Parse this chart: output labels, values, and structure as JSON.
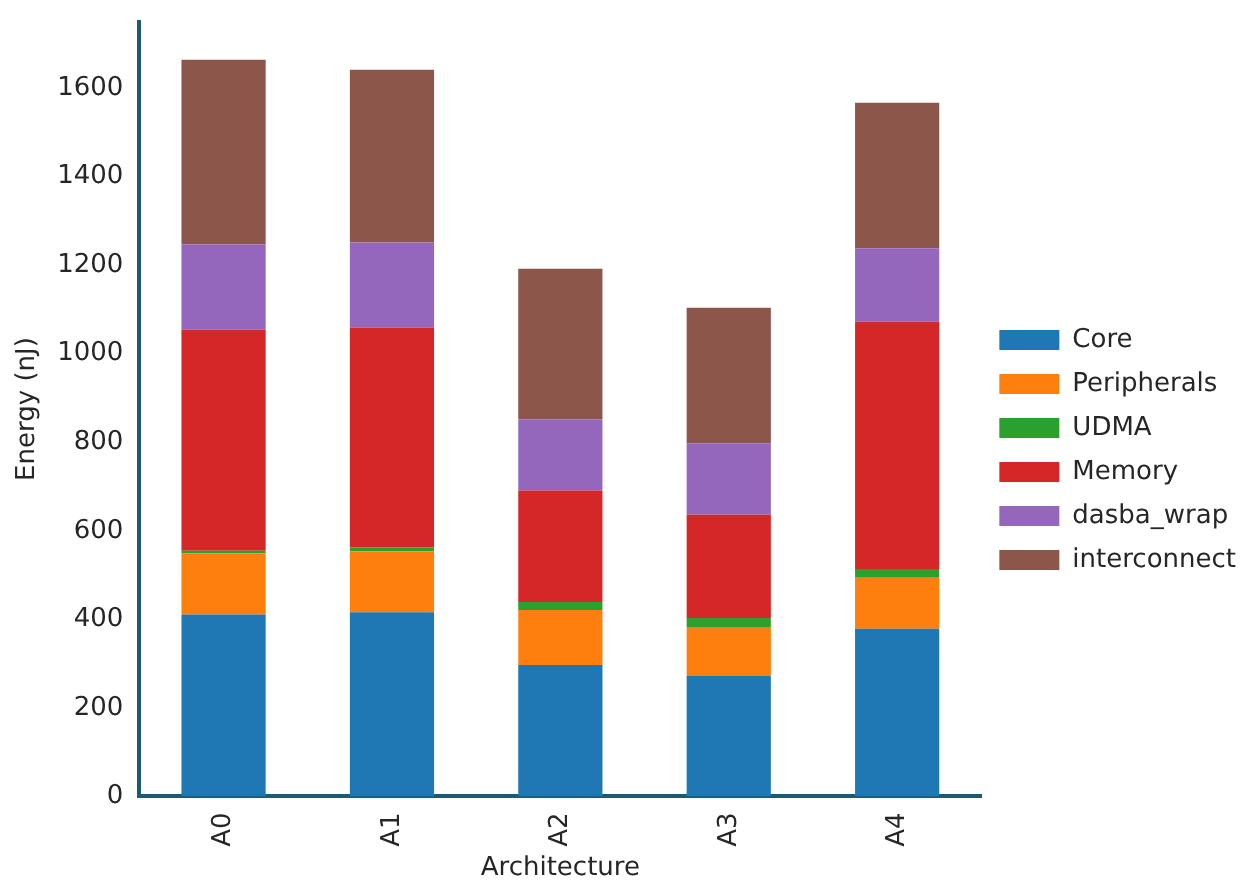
{
  "chart_data": {
    "type": "bar",
    "stacked": true,
    "xlabel": "Architecture",
    "ylabel": "Energy (nJ)",
    "categories": [
      "A0",
      "A1",
      "A2",
      "A3",
      "A4"
    ],
    "series": [
      {
        "name": "Core",
        "color": "#1f77b4",
        "values": [
          411,
          416,
          297,
          273,
          379
        ]
      },
      {
        "name": "Peripherals",
        "color": "#ff7f0e",
        "values": [
          138,
          138,
          124,
          110,
          115
        ]
      },
      {
        "name": "UDMA",
        "color": "#2ca02c",
        "values": [
          6,
          9,
          18,
          20,
          20
        ]
      },
      {
        "name": "Memory",
        "color": "#d62728",
        "values": [
          499,
          496,
          252,
          233,
          558
        ]
      },
      {
        "name": "dasba_wrap",
        "color": "#9467bd",
        "values": [
          193,
          192,
          161,
          162,
          166
        ]
      },
      {
        "name": "interconnect",
        "color": "#8c564b",
        "values": [
          417,
          390,
          340,
          306,
          329
        ]
      }
    ],
    "ylim": [
      0,
      1750
    ],
    "yticks": [
      0,
      200,
      400,
      600,
      800,
      1000,
      1200,
      1400,
      1600
    ],
    "grid": false,
    "legend": "right"
  }
}
